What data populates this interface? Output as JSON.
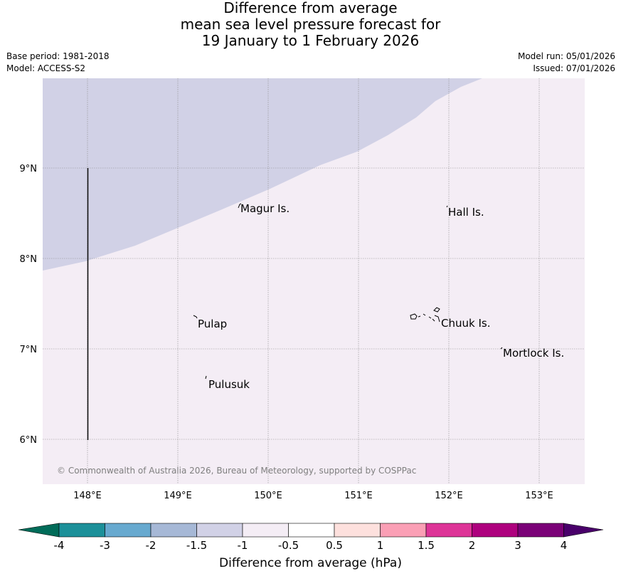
{
  "title": {
    "line1": "Difference from average",
    "line2": "mean sea level pressure forecast for",
    "line3": "19 January to 1 February 2026"
  },
  "meta": {
    "base_period": "Base period: 1981-2018",
    "model": "Model: ACCESS-S2",
    "model_run": "Model run: 05/01/2026",
    "issued": "Issued: 07/01/2026"
  },
  "map": {
    "lon_labels": [
      "148°E",
      "149°E",
      "150°E",
      "151°E",
      "152°E",
      "153°E"
    ],
    "lat_labels": [
      "9°N",
      "8°N",
      "7°N",
      "6°N"
    ],
    "places": {
      "magur": "Magur Is.",
      "hall": "Hall Is.",
      "pulap": "Pulap",
      "chuuk": "Chuuk Is.",
      "mortlock": "Mortlock Is.",
      "pulusuk": "Pulusuk"
    },
    "region_colors": {
      "negative": "#d1d1e6",
      "near_zero": "#f4edf5"
    },
    "copyright": "© Commonwealth of Australia 2026, Bureau of Meteorology, supported by COSPPac"
  },
  "colorbar": {
    "label": "Difference from average (hPa)",
    "ticks": [
      "-4",
      "-3",
      "-2",
      "-1.5",
      "-1",
      "-0.5",
      "0.5",
      "1",
      "1.5",
      "2",
      "3",
      "4"
    ],
    "low_extend_color": "#016c59",
    "high_extend_color": "#49006a",
    "colors": [
      "#1c9099",
      "#67a9cf",
      "#a6b8d6",
      "#d1d1e6",
      "#f4edf5",
      "#ffffff",
      "#fde0dd",
      "#fa9fb5",
      "#dd3497",
      "#ae017e",
      "#7a0177"
    ]
  }
}
